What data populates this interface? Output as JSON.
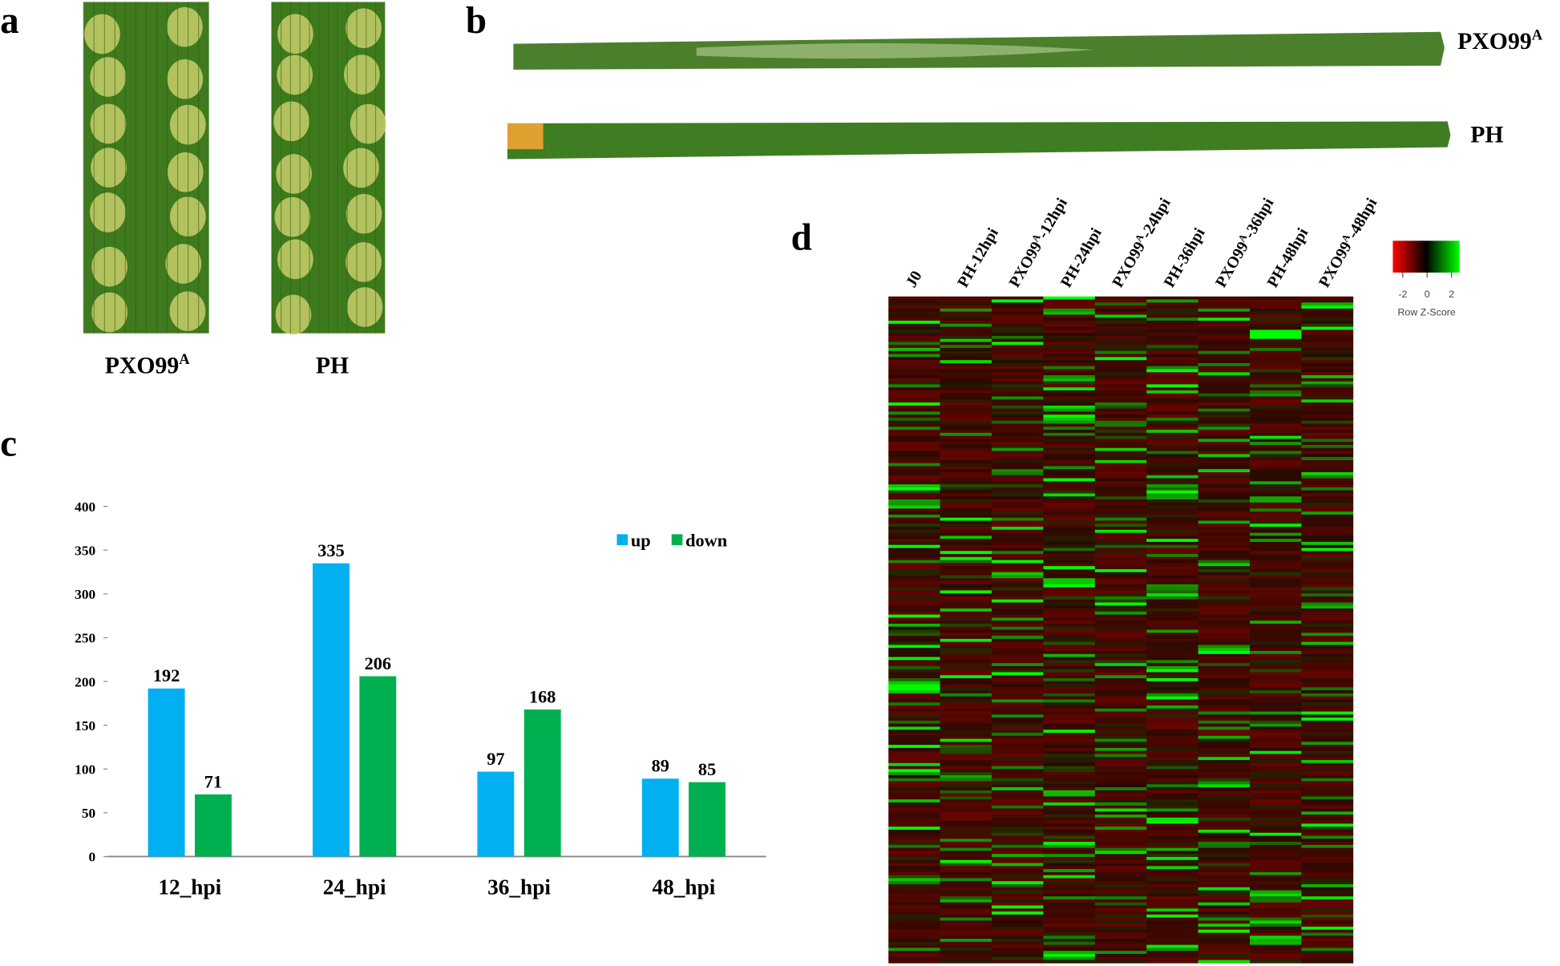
{
  "panels": {
    "a": "a",
    "b": "b",
    "c": "c",
    "d": "d"
  },
  "panel_a": {
    "labels": [
      {
        "text": "PXO99",
        "sup": "A"
      },
      {
        "text": "PH"
      }
    ]
  },
  "panel_b": {
    "labels": [
      {
        "text": "PXO99",
        "sup": "A"
      },
      {
        "text": "PH"
      }
    ]
  },
  "chart_data": {
    "type": "bar",
    "categories": [
      "12_hpi",
      "24_hpi",
      "36_hpi",
      "48_hpi"
    ],
    "series": [
      {
        "name": "up",
        "color": "#00b0f0",
        "values": [
          192,
          335,
          97,
          89
        ]
      },
      {
        "name": "down",
        "color": "#00b050",
        "values": [
          71,
          206,
          168,
          85
        ]
      }
    ],
    "ylim": [
      0,
      400
    ],
    "yticks": [
      0,
      50,
      100,
      150,
      200,
      250,
      300,
      350,
      400
    ],
    "legend": "top-right",
    "grid": false
  },
  "heatmap": {
    "columns": [
      {
        "text": "J0"
      },
      {
        "text": "PH-12hpi"
      },
      {
        "text": "PXO99",
        "sup": "A",
        "rest": "-12hpi"
      },
      {
        "text": "PH-24hpi"
      },
      {
        "text": "PXO99",
        "sup": "A",
        "rest": "-24hpi"
      },
      {
        "text": "PH-36hpi"
      },
      {
        "text": "PXO99",
        "sup": "A",
        "rest": "-36hpi"
      },
      {
        "text": "PH-48hpi"
      },
      {
        "text": "PXO99",
        "sup": "A",
        "rest": "-48hpi"
      }
    ],
    "color_key": {
      "ticks": [
        -2,
        0,
        2
      ],
      "label": "Row Z-Score"
    }
  }
}
